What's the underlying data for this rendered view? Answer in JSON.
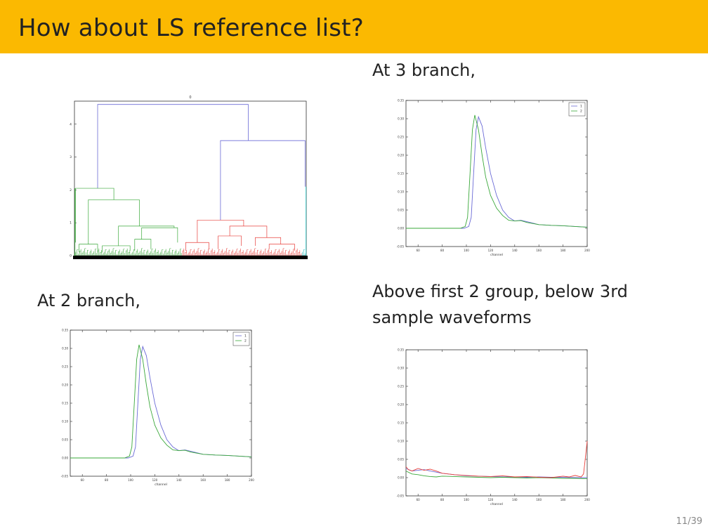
{
  "slide": {
    "title": "How about LS reference list?",
    "caption_3branch": "At 3 branch,",
    "caption_2branch": "At 2 branch,",
    "caption_waveforms": "Above first 2 group, below 3rd sample waveforms",
    "page_number": "11/39"
  },
  "colors": {
    "title_bar": "#fbb901",
    "series_blue": "#6b6bd6",
    "series_green": "#3aa83a",
    "series_red": "#e8413c",
    "cyan": "#20c0c0"
  },
  "chart_data": [
    {
      "type": "dendrogram",
      "title": "0",
      "yticks": [
        0,
        1,
        2,
        3,
        4
      ],
      "ylim": [
        0,
        4.7
      ],
      "links": [
        {
          "color": "blue",
          "x1": 0.1,
          "x2": 0.75,
          "y1a": 2.05,
          "y1b": 3.5,
          "ytop": 4.6
        },
        {
          "color": "blue",
          "x1": 0.63,
          "x2": 0.995,
          "y1a": 1.08,
          "y1b": 2.1,
          "ytop": 3.5
        }
      ],
      "clusters": [
        {
          "name": "green",
          "color": "#3aa83a",
          "range": [
            0.0,
            0.465
          ]
        },
        {
          "name": "red",
          "color": "#e8413c",
          "range": [
            0.465,
            0.98
          ]
        },
        {
          "name": "cyan",
          "color": "#20c0c0",
          "range": [
            0.98,
            1.0
          ]
        }
      ]
    },
    {
      "type": "line",
      "panel": "3 branch",
      "xlabel": "channel",
      "xlim": [
        50,
        200
      ],
      "ylim": [
        -0.05,
        0.35
      ],
      "xticks": [
        60,
        80,
        100,
        120,
        140,
        160,
        180,
        200
      ],
      "yticks": [
        -0.05,
        0.0,
        0.05,
        0.1,
        0.15,
        0.2,
        0.25,
        0.3,
        0.35
      ],
      "legend": "top-right",
      "series": [
        {
          "name": "1",
          "color": "blue",
          "x": [
            50,
            98,
            102,
            104,
            106,
            108,
            110,
            113,
            116,
            120,
            125,
            130,
            135,
            140,
            145,
            150,
            160,
            170,
            180,
            190,
            200
          ],
          "y": [
            0,
            0,
            0.005,
            0.03,
            0.15,
            0.27,
            0.305,
            0.28,
            0.22,
            0.15,
            0.09,
            0.05,
            0.03,
            0.02,
            0.022,
            0.018,
            0.01,
            0.008,
            0.007,
            0.005,
            0.003
          ]
        },
        {
          "name": "2",
          "color": "green",
          "x": [
            50,
            95,
            99,
            101,
            103,
            105,
            107,
            110,
            113,
            116,
            120,
            125,
            130,
            135,
            140,
            145,
            150,
            160,
            170,
            180,
            190,
            200
          ],
          "y": [
            0,
            0,
            0.005,
            0.03,
            0.15,
            0.27,
            0.31,
            0.27,
            0.2,
            0.14,
            0.09,
            0.055,
            0.035,
            0.022,
            0.02,
            0.021,
            0.016,
            0.01,
            0.008,
            0.007,
            0.005,
            0.003
          ]
        }
      ]
    },
    {
      "type": "line",
      "panel": "2 branch",
      "xlabel": "channel",
      "xlim": [
        50,
        200
      ],
      "ylim": [
        -0.05,
        0.35
      ],
      "xticks": [
        60,
        80,
        100,
        120,
        140,
        160,
        180,
        200
      ],
      "yticks": [
        -0.05,
        0.0,
        0.05,
        0.1,
        0.15,
        0.2,
        0.25,
        0.3,
        0.35
      ],
      "legend": "top-right",
      "series": [
        {
          "name": "1",
          "color": "blue",
          "x": [
            50,
            98,
            102,
            104,
            106,
            108,
            110,
            113,
            116,
            120,
            125,
            130,
            135,
            140,
            145,
            150,
            160,
            170,
            180,
            190,
            200
          ],
          "y": [
            0,
            0,
            0.005,
            0.03,
            0.15,
            0.27,
            0.305,
            0.28,
            0.22,
            0.15,
            0.09,
            0.05,
            0.03,
            0.02,
            0.022,
            0.018,
            0.01,
            0.008,
            0.007,
            0.005,
            0.003
          ]
        },
        {
          "name": "2",
          "color": "green",
          "x": [
            50,
            95,
            99,
            101,
            103,
            105,
            107,
            110,
            113,
            116,
            120,
            125,
            130,
            135,
            140,
            145,
            150,
            160,
            170,
            180,
            190,
            200
          ],
          "y": [
            0,
            0,
            0.005,
            0.03,
            0.15,
            0.27,
            0.31,
            0.27,
            0.2,
            0.14,
            0.09,
            0.055,
            0.035,
            0.022,
            0.02,
            0.021,
            0.016,
            0.01,
            0.008,
            0.007,
            0.005,
            0.003
          ]
        }
      ]
    },
    {
      "type": "line",
      "panel": "sample waveforms",
      "xlabel": "channel",
      "xlim": [
        50,
        200
      ],
      "ylim": [
        -0.05,
        0.35
      ],
      "xticks": [
        60,
        80,
        100,
        120,
        140,
        160,
        180,
        200
      ],
      "yticks": [
        -0.05,
        0.0,
        0.05,
        0.1,
        0.15,
        0.2,
        0.25,
        0.3,
        0.35
      ],
      "series": [
        {
          "color": "blue",
          "x": [
            50,
            55,
            60,
            65,
            70,
            75,
            80,
            90,
            100,
            110,
            120,
            130,
            140,
            150,
            160,
            170,
            180,
            190,
            198,
            200
          ],
          "y": [
            0.025,
            0.018,
            0.02,
            0.022,
            0.018,
            0.015,
            0.012,
            0.008,
            0.005,
            0.004,
            0.003,
            0.002,
            0.002,
            0.001,
            0.002,
            0.001,
            0.001,
            0.0,
            0.0,
            0.0
          ]
        },
        {
          "color": "green",
          "x": [
            50,
            55,
            60,
            65,
            70,
            75,
            80,
            90,
            100,
            110,
            120,
            130,
            140,
            150,
            160,
            170,
            180,
            190,
            198,
            200
          ],
          "y": [
            0.018,
            0.01,
            0.008,
            0.005,
            0.003,
            0.002,
            0.004,
            0.003,
            0.002,
            0.001,
            0.0,
            0.001,
            0.0,
            -0.001,
            0.0,
            -0.001,
            -0.002,
            -0.002,
            -0.003,
            -0.003
          ]
        },
        {
          "color": "red",
          "x": [
            50,
            52,
            55,
            60,
            65,
            70,
            75,
            80,
            90,
            100,
            110,
            120,
            130,
            140,
            150,
            160,
            170,
            180,
            185,
            190,
            195,
            197,
            198,
            199,
            200
          ],
          "y": [
            0.03,
            0.022,
            0.018,
            0.025,
            0.02,
            0.023,
            0.018,
            0.012,
            0.008,
            0.006,
            0.004,
            0.003,
            0.005,
            0.002,
            0.003,
            0.001,
            0.0,
            0.004,
            0.002,
            0.006,
            0.002,
            0.01,
            0.04,
            0.07,
            0.1
          ]
        }
      ]
    }
  ]
}
